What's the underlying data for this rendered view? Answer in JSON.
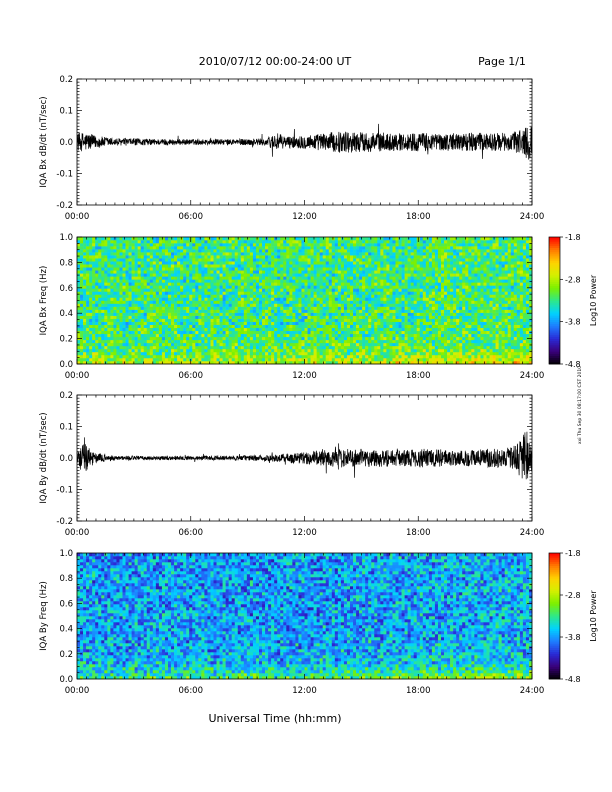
{
  "header": {
    "title": "2010/07/12  00:00-24:00 UT",
    "page": "Page 1/1"
  },
  "footer": {
    "xlabel": "Universal Time (hh:mm)",
    "stamp": "xxi Thu Sep 30 08:17:00 CST 2010"
  },
  "colors": {
    "trace": "#000000",
    "colormap": [
      "#000000",
      "#3a007a",
      "#2a2ad6",
      "#1e7dff",
      "#00d2ff",
      "#2ee88a",
      "#7cf000",
      "#d4f000",
      "#ffd200",
      "#ff7a00",
      "#ff0000"
    ]
  },
  "chart_data": [
    {
      "type": "line",
      "ylabel": "IQA Bx dB/dt (nT/sec)",
      "xlim": [
        0,
        24
      ],
      "ylim": [
        -0.2,
        0.2
      ],
      "yticks": [
        0.2,
        0.1,
        0.0,
        -0.1,
        -0.2
      ],
      "yticklabels": [
        "0.2",
        "0.1",
        "0.0",
        "-0.1",
        "-0.2"
      ],
      "xticks": [
        0,
        6,
        12,
        18,
        24
      ],
      "xticklabels": [
        "00:00",
        "06:00",
        "12:00",
        "18:00",
        "24:00"
      ],
      "envelope": {
        "hours": [
          0,
          0.4,
          1,
          2,
          4,
          6,
          8,
          10,
          10.5,
          11,
          12,
          13,
          14,
          15,
          16,
          17,
          18,
          19,
          20,
          21,
          22,
          23,
          23.7,
          24
        ],
        "amplitude": [
          0.028,
          0.032,
          0.02,
          0.012,
          0.01,
          0.009,
          0.009,
          0.012,
          0.03,
          0.018,
          0.022,
          0.028,
          0.035,
          0.032,
          0.03,
          0.028,
          0.03,
          0.028,
          0.028,
          0.03,
          0.028,
          0.03,
          0.06,
          0.05
        ]
      }
    },
    {
      "type": "heatmap",
      "ylabel": "IQA Bx Freq (Hz)",
      "xlim": [
        0,
        24
      ],
      "ylim": [
        0.0,
        1.0
      ],
      "yticks": [
        1.0,
        0.8,
        0.6,
        0.4,
        0.2,
        0.0
      ],
      "yticklabels": [
        "1.0",
        "0.8",
        "0.6",
        "0.4",
        "0.2",
        "0.0"
      ],
      "xticks": [
        0,
        6,
        12,
        18,
        24
      ],
      "xticklabels": [
        "00:00",
        "06:00",
        "12:00",
        "18:00",
        "24:00"
      ],
      "colorbar": {
        "label": "Log10 Power",
        "range": [
          -4.8,
          -1.8
        ],
        "ticks": [
          -1.8,
          -2.8,
          -3.8,
          -4.8
        ],
        "ticklabels": [
          "-1.8",
          "-2.8",
          "-3.8",
          "-4.8"
        ]
      },
      "power_summary": {
        "base_level": -3.4,
        "low_freq_enhancement": -2.6,
        "enhanced_hours": [
          12,
          24
        ]
      }
    },
    {
      "type": "line",
      "ylabel": "IQA By dB/dt (nT/sec)",
      "xlim": [
        0,
        24
      ],
      "ylim": [
        -0.2,
        0.2
      ],
      "yticks": [
        0.2,
        0.1,
        0.0,
        -0.1,
        -0.2
      ],
      "yticklabels": [
        "0.2",
        "0.1",
        "0.0",
        "-0.1",
        "-0.2"
      ],
      "xticks": [
        0,
        6,
        12,
        18,
        24
      ],
      "xticklabels": [
        "00:00",
        "06:00",
        "12:00",
        "18:00",
        "24:00"
      ],
      "envelope": {
        "hours": [
          0,
          0.4,
          1,
          2,
          4,
          6,
          8,
          10,
          11,
          12,
          13,
          14,
          15,
          16,
          17,
          18,
          19,
          20,
          21,
          22,
          23,
          23.7,
          24
        ],
        "amplitude": [
          0.03,
          0.05,
          0.015,
          0.008,
          0.006,
          0.006,
          0.007,
          0.01,
          0.014,
          0.02,
          0.025,
          0.03,
          0.028,
          0.03,
          0.025,
          0.03,
          0.028,
          0.025,
          0.028,
          0.03,
          0.035,
          0.09,
          0.05
        ]
      }
    },
    {
      "type": "heatmap",
      "ylabel": "IQA By Freq (Hz)",
      "xlim": [
        0,
        24
      ],
      "ylim": [
        0.0,
        1.0
      ],
      "yticks": [
        1.0,
        0.8,
        0.6,
        0.4,
        0.2,
        0.0
      ],
      "yticklabels": [
        "1.0",
        "0.8",
        "0.6",
        "0.4",
        "0.2",
        "0.0"
      ],
      "xticks": [
        0,
        6,
        12,
        18,
        24
      ],
      "xticklabels": [
        "00:00",
        "06:00",
        "12:00",
        "18:00",
        "24:00"
      ],
      "colorbar": {
        "label": "Log10 Power",
        "range": [
          -4.8,
          -1.8
        ],
        "ticks": [
          -1.8,
          -2.8,
          -3.8,
          -4.8
        ],
        "ticklabels": [
          "-1.8",
          "-2.8",
          "-3.8",
          "-4.8"
        ]
      },
      "power_summary": {
        "base_level": -3.9,
        "low_freq_enhancement": -2.9,
        "enhanced_hours": [
          12,
          24
        ]
      }
    }
  ]
}
